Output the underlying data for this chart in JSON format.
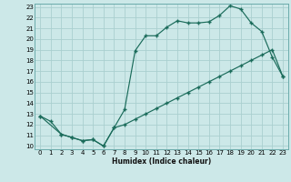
{
  "xlabel": "Humidex (Indice chaleur)",
  "bg_color": "#cce8e8",
  "line_color": "#1a6b5a",
  "grid_color": "#aacfcf",
  "xlim": [
    0,
    23
  ],
  "ylim": [
    10,
    23
  ],
  "xticks": [
    0,
    1,
    2,
    3,
    4,
    5,
    6,
    7,
    8,
    9,
    10,
    11,
    12,
    13,
    14,
    15,
    16,
    17,
    18,
    19,
    20,
    21,
    22,
    23
  ],
  "yticks": [
    10,
    11,
    12,
    13,
    14,
    15,
    16,
    17,
    18,
    19,
    20,
    21,
    22,
    23
  ],
  "line1_x": [
    0,
    1,
    2,
    3,
    4,
    5,
    6,
    7,
    8,
    9,
    10,
    11,
    12,
    13,
    14,
    15,
    16,
    17,
    18,
    19,
    20,
    21,
    22,
    23
  ],
  "line1_y": [
    12.8,
    12.3,
    11.1,
    10.8,
    10.5,
    10.6,
    10.0,
    11.7,
    13.4,
    18.9,
    20.3,
    20.3,
    21.1,
    21.7,
    21.5,
    21.5,
    21.6,
    22.2,
    23.1,
    22.8,
    21.5,
    20.7,
    18.3,
    16.5
  ],
  "line2_x": [
    0,
    2,
    3,
    4,
    5,
    6,
    7,
    8,
    9,
    10,
    11,
    12,
    13,
    14,
    15,
    16,
    17,
    18,
    19,
    20,
    21,
    22,
    23
  ],
  "line2_y": [
    12.8,
    11.1,
    10.8,
    10.5,
    10.6,
    10.0,
    11.7,
    12.0,
    12.5,
    13.0,
    13.5,
    14.0,
    14.5,
    15.0,
    15.5,
    16.0,
    16.5,
    17.0,
    17.5,
    18.0,
    18.5,
    19.0,
    16.5
  ]
}
